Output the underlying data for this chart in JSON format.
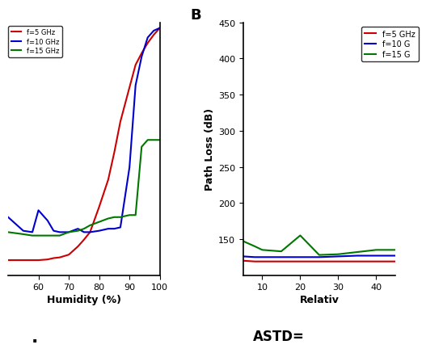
{
  "panel_A": {
    "xlim": [
      50,
      100
    ],
    "ylim": [
      100,
      470
    ],
    "xticks": [
      60,
      70,
      80,
      90,
      100
    ],
    "xlabel": "Humidity (%)",
    "legend_colors": [
      "#cc0000",
      "#0000cc",
      "#007700"
    ],
    "x": [
      50,
      55,
      58,
      60,
      63,
      65,
      67,
      70,
      73,
      75,
      77,
      80,
      83,
      85,
      87,
      90,
      92,
      94,
      96,
      98,
      100
    ],
    "y_red": [
      122,
      122,
      122,
      122,
      123,
      125,
      126,
      130,
      142,
      152,
      163,
      200,
      240,
      280,
      325,
      375,
      408,
      425,
      440,
      452,
      462
    ],
    "y_blue": [
      185,
      165,
      163,
      195,
      180,
      165,
      163,
      163,
      168,
      163,
      163,
      165,
      168,
      168,
      170,
      258,
      378,
      420,
      448,
      458,
      462
    ],
    "y_green": [
      163,
      160,
      158,
      158,
      158,
      158,
      158,
      163,
      165,
      168,
      173,
      178,
      183,
      185,
      185,
      188,
      188,
      288,
      298,
      298,
      298
    ]
  },
  "panel_B": {
    "xlim": [
      5,
      45
    ],
    "ylim": [
      100,
      450
    ],
    "xticks": [
      10,
      20,
      30,
      40
    ],
    "yticks": [
      150,
      200,
      250,
      300,
      350,
      400,
      450
    ],
    "ylabel": "Path Loss (dB)",
    "xlabel": "Relativ",
    "legend_labels": [
      "f=5 GHz",
      "f=10 G",
      "f=15 G"
    ],
    "legend_colors": [
      "#cc0000",
      "#0000cc",
      "#007700"
    ],
    "x": [
      5,
      8,
      10,
      15,
      20,
      25,
      30,
      35,
      40,
      45
    ],
    "y_red": [
      120,
      119,
      119,
      119,
      119,
      119,
      119,
      119,
      119,
      119
    ],
    "y_blue": [
      126,
      125,
      125,
      125,
      125,
      125,
      126,
      127,
      127,
      127
    ],
    "y_green": [
      147,
      140,
      135,
      133,
      155,
      128,
      129,
      132,
      135,
      135
    ]
  },
  "background_color": "#ffffff"
}
